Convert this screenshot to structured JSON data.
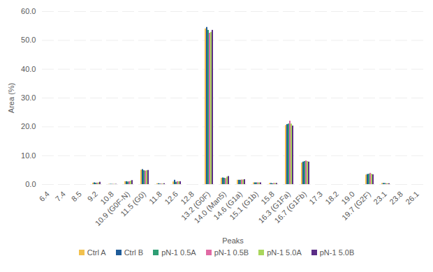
{
  "chart_data": {
    "type": "bar",
    "x_label": "Peaks",
    "y_label": "Area (%)",
    "categories": [
      "6.4",
      "7.4",
      "8.5",
      "9.2",
      "10.8",
      "10.9 (G0F-N)",
      "11.5 (G0)",
      "11.8",
      "12.6",
      "12.8",
      "13.2 (G0F)",
      "14.0 (Man5)",
      "14.6 (G1a)",
      "15.1 (G1b)",
      "15.8",
      "16.3 (G1Fa)",
      "16.7 (G1Fb)",
      "17.3",
      "18.2",
      "19.0",
      "19.7 (G2F)",
      "23.1",
      "23.8",
      "26.1"
    ],
    "series": [
      {
        "name": "Ctrl A",
        "color": "#f2c14e",
        "values": [
          0,
          0,
          0,
          0.5,
          0.1,
          1.0,
          5.0,
          0.3,
          0.9,
          0,
          54.0,
          2.2,
          1.5,
          0.6,
          0.4,
          20.5,
          7.5,
          0,
          0,
          0,
          3.3,
          0.4,
          0,
          0
        ]
      },
      {
        "name": "Ctrl B",
        "color": "#1f5c99",
        "values": [
          0,
          0,
          0,
          0.6,
          0.1,
          1.0,
          5.2,
          0.3,
          1.5,
          0,
          54.5,
          2.3,
          1.5,
          0.6,
          0.4,
          20.8,
          7.8,
          0,
          0,
          0,
          3.5,
          0.4,
          0,
          0
        ]
      },
      {
        "name": "pN-1 0.5A",
        "color": "#2e9e74",
        "values": [
          0,
          0,
          0,
          0.5,
          0.1,
          0.9,
          4.8,
          0.2,
          0.8,
          0,
          53.5,
          2.2,
          1.5,
          0.6,
          0.3,
          21.0,
          8.0,
          0,
          0,
          0,
          3.6,
          0.4,
          0,
          0
        ]
      },
      {
        "name": "pN-1 0.5B",
        "color": "#e06aa4",
        "values": [
          0,
          0,
          0,
          0.5,
          0.1,
          1.0,
          4.7,
          0.2,
          1.0,
          0,
          52.5,
          2.1,
          1.6,
          0.6,
          0.4,
          22.0,
          8.2,
          0,
          0,
          0,
          3.9,
          0.3,
          0,
          0
        ]
      },
      {
        "name": "pN-1 5.0A",
        "color": "#a9d65c",
        "values": [
          0,
          0,
          0,
          0.6,
          0.1,
          1.2,
          4.8,
          0.2,
          1.0,
          0,
          52.8,
          2.6,
          1.6,
          0.6,
          0.4,
          21.0,
          8.0,
          0,
          0,
          0,
          3.6,
          0.3,
          0,
          0
        ]
      },
      {
        "name": "pN-1 5.0B",
        "color": "#5b2d86",
        "values": [
          0,
          0,
          0,
          0.8,
          0.1,
          1.4,
          4.9,
          0.3,
          1.0,
          0,
          53.5,
          2.8,
          1.7,
          0.6,
          0.4,
          20.3,
          7.8,
          0,
          0,
          0,
          3.4,
          0.3,
          0,
          0
        ]
      }
    ],
    "ylim": [
      0,
      60
    ],
    "yticks": [
      {
        "value": 0,
        "label": "0.0"
      },
      {
        "value": 10,
        "label": "10.0"
      },
      {
        "value": 20,
        "label": "20.0"
      },
      {
        "value": 30,
        "label": "30.0"
      },
      {
        "value": 40,
        "label": "40.0"
      },
      {
        "value": 50,
        "label": "50.0"
      },
      {
        "value": 60,
        "label": "60.0"
      }
    ],
    "grid": true,
    "legend": "bottom"
  }
}
